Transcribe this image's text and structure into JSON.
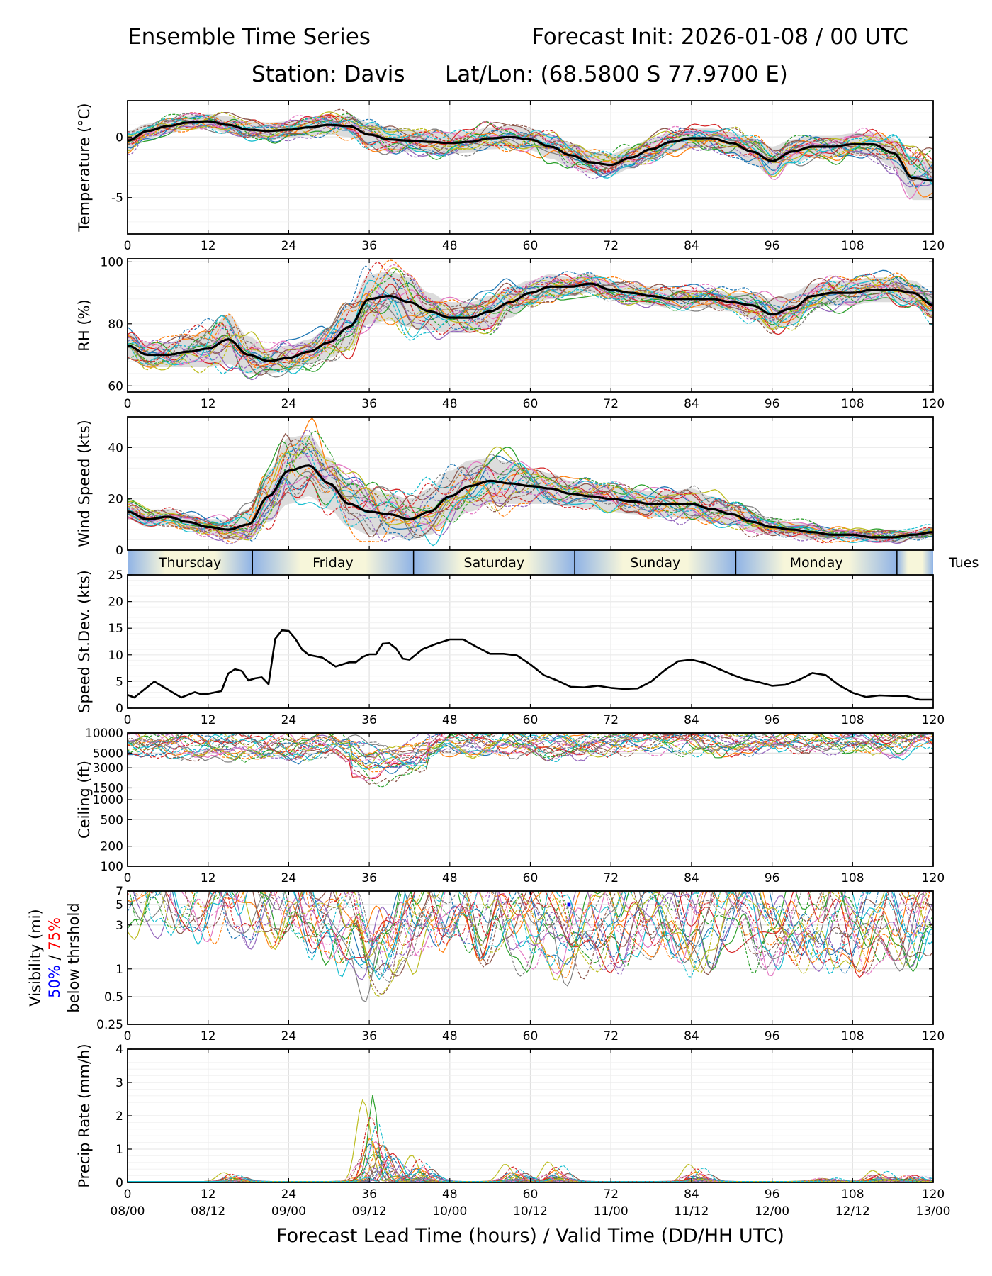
{
  "header": {
    "title_left": "Ensemble Time Series",
    "title_right": "Forecast Init: 2026-01-08 / 00 UTC",
    "station": "Station: Davis",
    "latlon": "Lat/Lon: (68.5800 S 77.9700 E)"
  },
  "x_axis": {
    "lead_ticks": [
      0,
      12,
      24,
      36,
      48,
      60,
      72,
      84,
      96,
      108,
      120
    ],
    "valid_ticks": [
      "08/00",
      "08/12",
      "09/00",
      "09/12",
      "10/00",
      "10/12",
      "11/00",
      "11/12",
      "12/00",
      "12/12",
      "13/00"
    ],
    "label": "Forecast Lead Time (hours) / Valid Time (DD/HH UTC)"
  },
  "day_bar": {
    "days": [
      "Thursday",
      "Friday",
      "Saturday",
      "Sunday",
      "Monday",
      "Tues"
    ],
    "boundaries_h": [
      0,
      18.6,
      42.6,
      66.6,
      90.6,
      114.6,
      120
    ]
  },
  "colors": {
    "members": [
      "#1f77b4",
      "#ff7f0e",
      "#2ca02c",
      "#d62728",
      "#9467bd",
      "#8c564b",
      "#e377c2",
      "#7f7f7f",
      "#bcbd22",
      "#17becf"
    ],
    "mean": "#000000",
    "spread": "#d3d3d3",
    "vis_50": "#0000ff",
    "vis_75": "#ff0000"
  },
  "chart_data": [
    {
      "id": "temperature",
      "type": "line",
      "ylabel": "Temperature (°C)",
      "ylim": [
        -8,
        3
      ],
      "yticks": [
        0,
        -5
      ],
      "ytick_labels": [
        "0",
        "-5"
      ],
      "x": [
        0,
        3,
        6,
        9,
        12,
        15,
        18,
        21,
        24,
        27,
        30,
        33,
        36,
        39,
        42,
        45,
        48,
        51,
        54,
        57,
        60,
        63,
        66,
        69,
        72,
        75,
        78,
        81,
        84,
        87,
        90,
        93,
        96,
        99,
        102,
        105,
        108,
        111,
        114,
        117,
        120
      ],
      "mean": [
        -0.3,
        0.5,
        0.9,
        1.2,
        1.3,
        1.0,
        0.6,
        0.5,
        0.6,
        0.8,
        1.0,
        0.9,
        0.2,
        -0.2,
        -0.3,
        -0.4,
        -0.5,
        -0.4,
        -0.1,
        0.0,
        -0.2,
        -0.8,
        -1.5,
        -2.1,
        -2.3,
        -1.7,
        -1.0,
        -0.4,
        -0.1,
        -0.1,
        -0.5,
        -1.2,
        -2.0,
        -1.2,
        -0.8,
        -0.8,
        -0.6,
        -0.6,
        -1.3,
        -3.4,
        -3.6
      ],
      "spread": [
        0.8,
        0.6,
        0.6,
        0.6,
        0.6,
        0.7,
        0.7,
        0.7,
        0.7,
        0.7,
        0.8,
        0.9,
        1.0,
        1.0,
        0.9,
        0.9,
        0.9,
        0.9,
        0.9,
        0.9,
        0.9,
        1.0,
        1.0,
        0.9,
        0.9,
        0.9,
        0.9,
        0.8,
        0.8,
        0.8,
        0.9,
        1.1,
        1.2,
        1.0,
        0.9,
        0.9,
        0.9,
        1.0,
        1.2,
        1.8,
        1.6
      ]
    },
    {
      "id": "rh",
      "type": "line",
      "ylabel": "RH (%)",
      "ylim": [
        58,
        101
      ],
      "yticks": [
        100,
        80,
        60
      ],
      "ytick_labels": [
        "100",
        "80",
        "60"
      ],
      "x": [
        0,
        3,
        6,
        9,
        12,
        15,
        18,
        21,
        24,
        27,
        30,
        33,
        36,
        39,
        42,
        45,
        48,
        51,
        54,
        57,
        60,
        63,
        66,
        69,
        72,
        75,
        78,
        81,
        84,
        87,
        90,
        93,
        96,
        99,
        102,
        105,
        108,
        111,
        114,
        117,
        120
      ],
      "mean": [
        73,
        70,
        70,
        71,
        72,
        75,
        70,
        68,
        69,
        71,
        74,
        79,
        88,
        89,
        87,
        84,
        82,
        82,
        84,
        87,
        90,
        92,
        92,
        93,
        91,
        90,
        89,
        88,
        88,
        88,
        87,
        86,
        83,
        85,
        89,
        90,
        90,
        91,
        91,
        90,
        86
      ],
      "spread": [
        4,
        4,
        4,
        5,
        6,
        8,
        6,
        4,
        4,
        4,
        5,
        7,
        8,
        8,
        8,
        6,
        5,
        5,
        5,
        5,
        4,
        4,
        3,
        3,
        3,
        3,
        3,
        3,
        3,
        3,
        3,
        4,
        5,
        5,
        4,
        4,
        4,
        4,
        4,
        4,
        4
      ]
    },
    {
      "id": "wind_speed",
      "type": "line",
      "ylabel": "Wind Speed (kts)",
      "ylim": [
        0,
        52
      ],
      "yticks": [
        0,
        20,
        40
      ],
      "ytick_labels": [
        "0",
        "20",
        "40"
      ],
      "x": [
        0,
        3,
        6,
        9,
        12,
        15,
        18,
        21,
        24,
        27,
        30,
        33,
        36,
        39,
        42,
        45,
        48,
        51,
        54,
        57,
        60,
        63,
        66,
        69,
        72,
        75,
        78,
        81,
        84,
        87,
        90,
        93,
        96,
        99,
        102,
        105,
        108,
        111,
        114,
        117,
        120
      ],
      "mean": [
        15,
        12,
        13,
        11,
        9,
        8,
        10,
        21,
        31,
        33,
        26,
        18,
        15,
        14,
        12,
        15,
        21,
        25,
        27,
        26,
        25,
        24,
        22,
        21,
        20,
        19,
        18,
        18,
        18,
        16,
        14,
        11,
        9,
        8,
        7,
        6,
        6,
        5,
        5,
        6,
        7
      ],
      "spread": [
        3,
        3,
        3,
        3,
        3,
        4,
        6,
        10,
        13,
        12,
        10,
        9,
        9,
        8,
        8,
        9,
        10,
        10,
        9,
        8,
        7,
        6,
        5,
        5,
        5,
        5,
        5,
        5,
        6,
        5,
        4,
        4,
        3,
        3,
        3,
        2,
        2,
        2,
        2,
        2,
        2
      ]
    },
    {
      "id": "speed_stdev",
      "type": "line",
      "ylabel": "Speed St.Dev. (kts)",
      "ylim": [
        0,
        25
      ],
      "yticks": [
        0,
        5,
        10,
        15,
        20,
        25
      ],
      "ytick_labels": [
        "0",
        "5",
        "10",
        "15",
        "20",
        "25"
      ],
      "x": [
        0,
        1,
        3,
        4,
        6,
        8,
        9,
        10,
        11,
        12,
        14,
        15,
        16,
        17,
        18,
        19,
        20,
        21,
        22,
        23,
        24,
        25,
        26,
        27,
        29,
        31,
        32,
        33,
        34,
        35,
        36,
        37,
        38,
        39,
        40,
        41,
        42,
        43,
        44,
        46,
        48,
        50,
        52,
        54,
        56,
        58,
        60,
        62,
        64,
        66,
        68,
        70,
        72,
        74,
        76,
        78,
        80,
        82,
        84,
        86,
        88,
        90,
        92,
        94,
        96,
        98,
        100,
        102,
        104,
        106,
        108,
        110,
        112,
        114,
        116,
        118,
        120
      ],
      "values": [
        2.5,
        2,
        4,
        5,
        3.5,
        2,
        2.5,
        3,
        2.6,
        2.7,
        3.2,
        6.5,
        7.3,
        7,
        5.2,
        5.6,
        5.8,
        4.5,
        13,
        14.6,
        14.5,
        13,
        11,
        10,
        9.5,
        7.8,
        8.2,
        8.6,
        8.6,
        9.6,
        10.1,
        10.1,
        12.1,
        12.2,
        11.2,
        9.3,
        9.1,
        10.1,
        11.1,
        12.1,
        12.9,
        12.9,
        11.5,
        10.2,
        10.2,
        9.9,
        8.2,
        6.2,
        5.2,
        4,
        3.9,
        4.2,
        3.8,
        3.6,
        3.7,
        5,
        7.1,
        8.8,
        9.1,
        8.5,
        7.4,
        6.3,
        5.4,
        4.9,
        4.2,
        4.4,
        5.3,
        6.6,
        6.2,
        4.3,
        2.9,
        2.1,
        2.4,
        2.3,
        2.3,
        1.6,
        1.6
      ]
    },
    {
      "id": "ceiling",
      "type": "line",
      "ylabel": "Ceiling (ft)",
      "scale": "log",
      "ylim": [
        100,
        10000
      ],
      "yticks": [
        10000,
        5000,
        3000,
        1500,
        1000,
        500,
        200,
        100
      ],
      "ytick_labels": [
        "10000",
        "5000",
        "3000",
        "1500",
        "1000",
        "500",
        "200",
        "100"
      ],
      "x": [
        0,
        6,
        12,
        18,
        24,
        30,
        33,
        36,
        39,
        42,
        45,
        48,
        54,
        60,
        66,
        72,
        78,
        84,
        90,
        96,
        102,
        108,
        114,
        120
      ],
      "base": [
        7000,
        6500,
        6300,
        6200,
        6300,
        6500,
        6000,
        4500,
        4000,
        5000,
        6000,
        7000,
        7500,
        7000,
        6500,
        7500,
        8000,
        7000,
        7500,
        8000,
        8500,
        7800,
        7000,
        8000
      ]
    },
    {
      "id": "visibility",
      "type": "line",
      "ylabel": "Visibility (mi)",
      "ylabel_line2_50": "50%",
      "ylabel_line2_sep": " / ",
      "ylabel_line2_75": "75%",
      "ylabel_line3": "below thrshold",
      "scale": "log",
      "ylim": [
        0.25,
        7
      ],
      "yticks": [
        7,
        5,
        3,
        1,
        0.5,
        0.25
      ],
      "ytick_labels": [
        "7",
        "5",
        "3",
        "1",
        "0.5",
        "0.25"
      ],
      "mark_50_at": [
        65.5,
        66
      ],
      "mark_50_value": 5,
      "x": [
        0,
        6,
        12,
        18,
        24,
        30,
        33,
        36,
        39,
        42,
        45,
        48,
        54,
        60,
        66,
        72,
        78,
        84,
        90,
        96,
        102,
        108,
        114,
        120
      ],
      "base": [
        7,
        7,
        7,
        6,
        6,
        4,
        2.5,
        1.2,
        1.5,
        3,
        5,
        6,
        4,
        3,
        2.5,
        3,
        4,
        3,
        4,
        3,
        3,
        2.5,
        3,
        4
      ]
    },
    {
      "id": "precip",
      "type": "line",
      "ylabel": "Precip Rate (mm/h)",
      "ylim": [
        0,
        4
      ],
      "yticks": [
        0,
        1,
        2,
        3,
        4
      ],
      "ytick_labels": [
        "0",
        "1",
        "2",
        "3",
        "4"
      ],
      "max_member": {
        "x": 36.6,
        "value": 2.8
      }
    }
  ]
}
